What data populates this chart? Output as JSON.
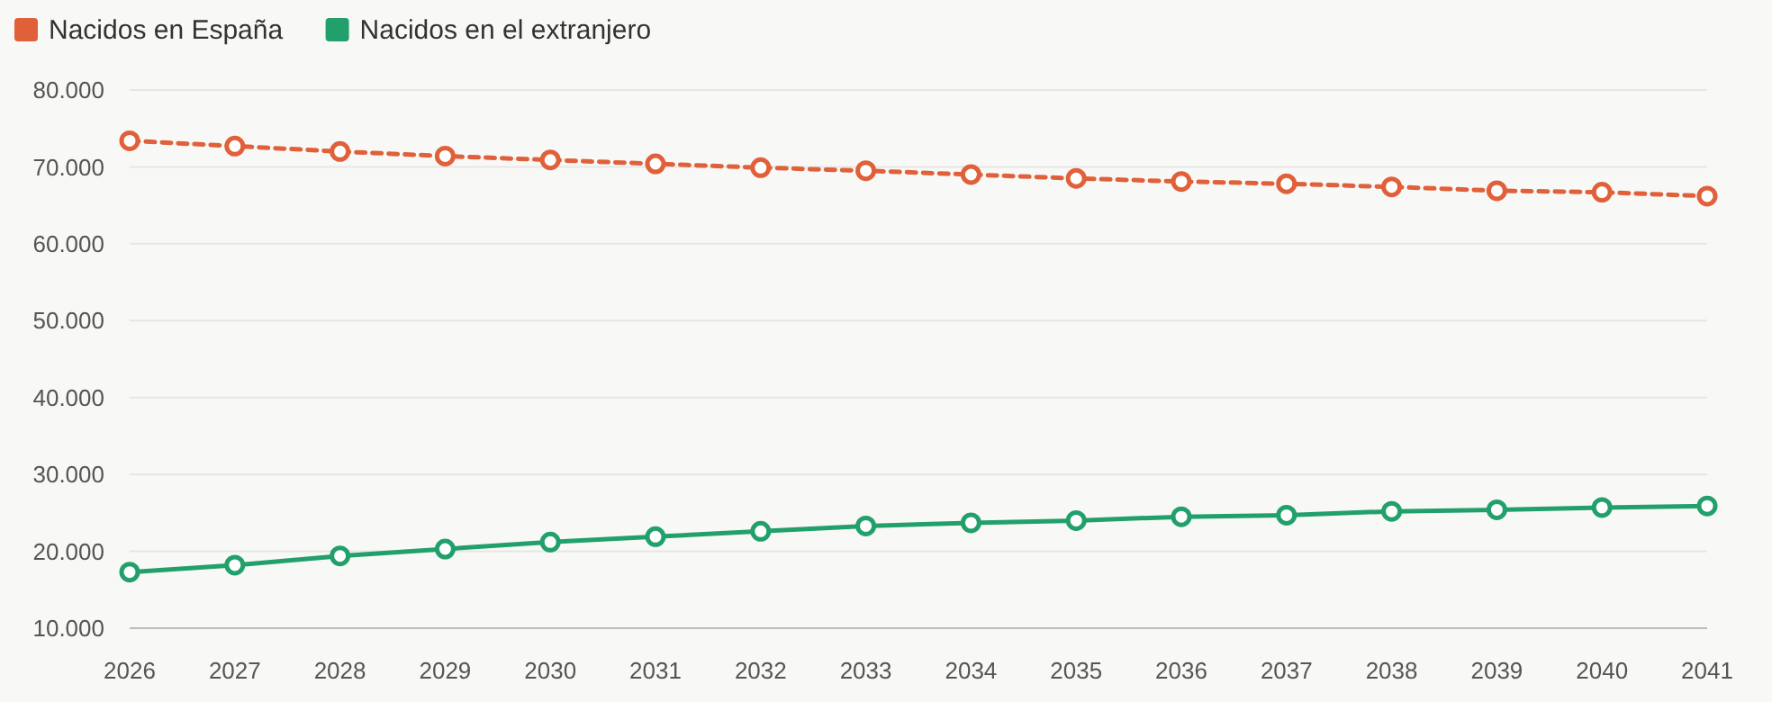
{
  "chart_data": {
    "type": "line",
    "categories": [
      "2026",
      "2027",
      "2028",
      "2029",
      "2030",
      "2031",
      "2032",
      "2033",
      "2034",
      "2035",
      "2036",
      "2037",
      "2038",
      "2039",
      "2040",
      "2041"
    ],
    "series": [
      {
        "name": "Nacidos en España",
        "color": "#e0603a",
        "line_style": "dashed",
        "values": [
          73400,
          72700,
          72000,
          71400,
          70900,
          70400,
          69900,
          69500,
          69000,
          68500,
          68100,
          67800,
          67400,
          66900,
          66700,
          66200
        ]
      },
      {
        "name": "Nacidos en el extranjero",
        "color": "#22a06b",
        "line_style": "solid",
        "values": [
          17300,
          18200,
          19400,
          20300,
          21200,
          21900,
          22600,
          23300,
          23700,
          24000,
          24500,
          24700,
          25200,
          25400,
          25700,
          25900
        ]
      }
    ],
    "ylim": [
      10000,
      80000
    ],
    "yticks": [
      {
        "value": 10000,
        "label": "10.000"
      },
      {
        "value": 20000,
        "label": "20.000"
      },
      {
        "value": 30000,
        "label": "30.000"
      },
      {
        "value": 40000,
        "label": "40.000"
      },
      {
        "value": 50000,
        "label": "50.000"
      },
      {
        "value": 60000,
        "label": "60.000"
      },
      {
        "value": 70000,
        "label": "70.000"
      },
      {
        "value": 80000,
        "label": "80.000"
      }
    ],
    "grid": "y",
    "legend": "top left",
    "marker": "circle"
  }
}
